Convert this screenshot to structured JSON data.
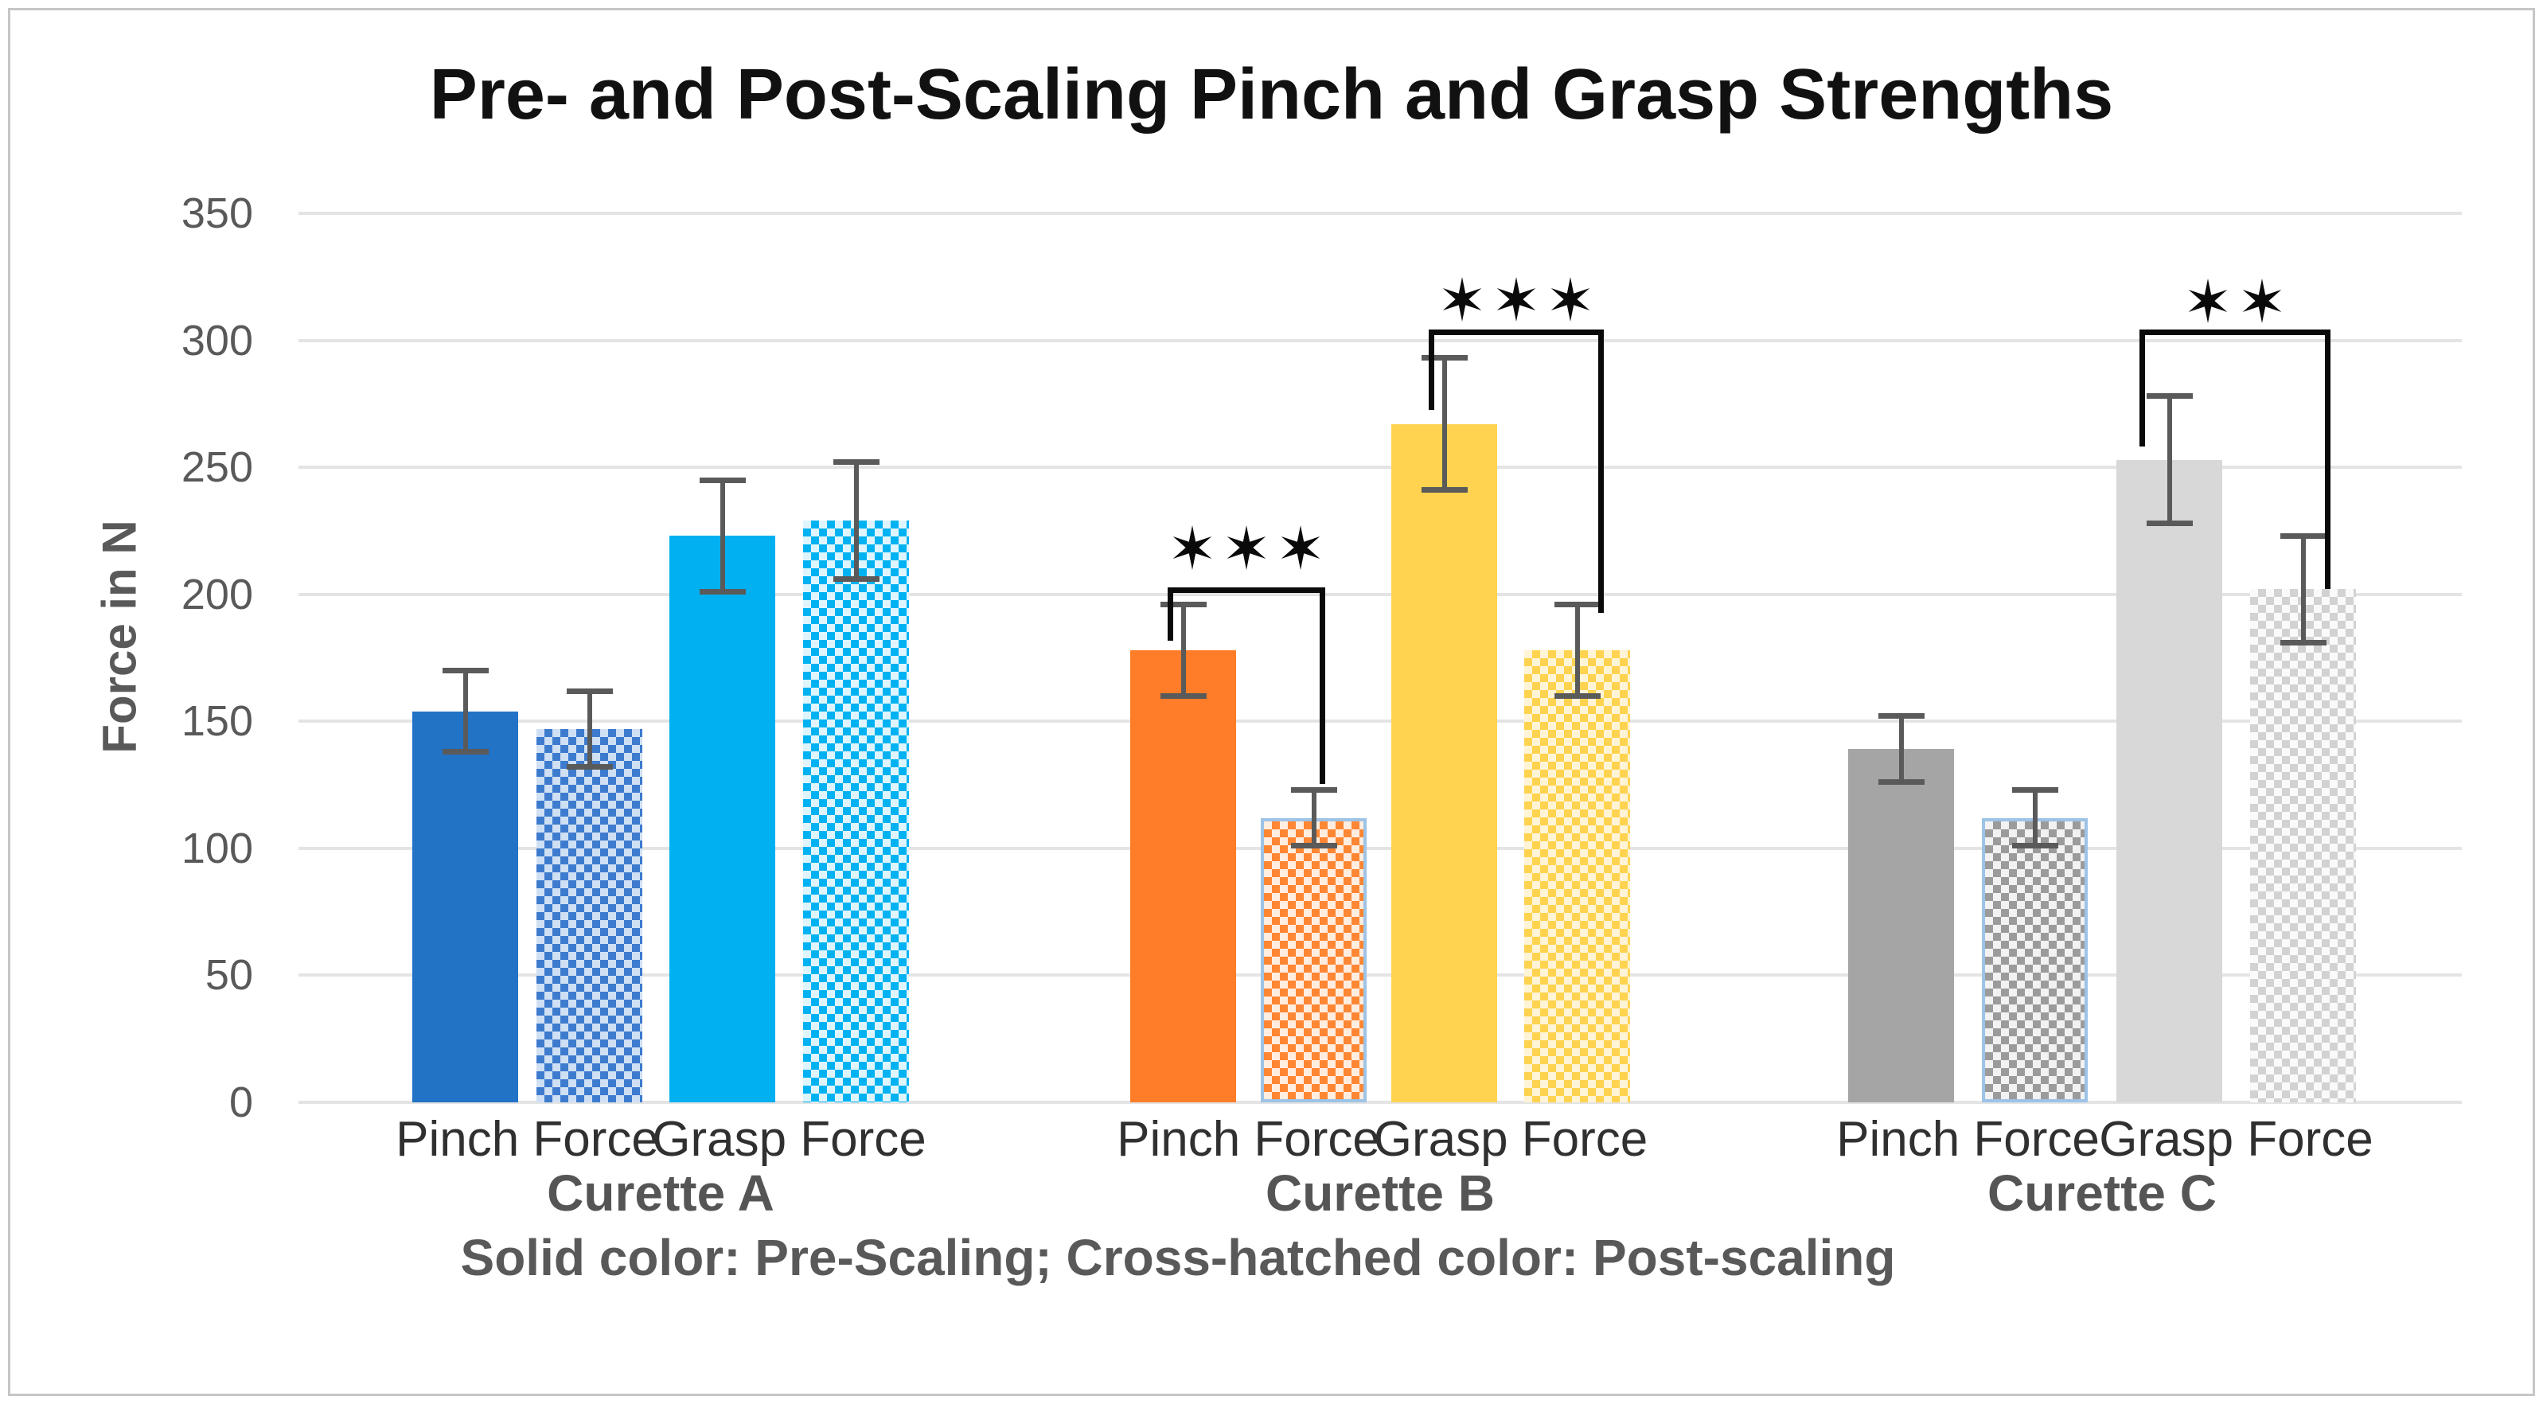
{
  "chart_data": {
    "type": "bar",
    "title": "Pre- and Post-Scaling Pinch and Grasp Strengths",
    "ylabel": "Force in N",
    "xlabel": "",
    "ylim": [
      0,
      350
    ],
    "yticks": [
      0,
      50,
      100,
      150,
      200,
      250,
      300,
      350
    ],
    "grid": true,
    "legend_note": "Solid color: Pre-Scaling; Cross-hatched color: Post-scaling",
    "legend": {
      "solid": "Pre-Scaling",
      "cross_hatched": "Post-scaling"
    },
    "error_bar_color": "#5a5a5a",
    "groups": [
      {
        "label": "Curette A",
        "categories": [
          "Pinch Force",
          "Grasp Force"
        ],
        "bars": [
          {
            "category": "Pinch Force",
            "phase": "Pre-Scaling",
            "style": "solid",
            "value": 154,
            "error": 16,
            "color": "#2272c6"
          },
          {
            "category": "Pinch Force",
            "phase": "Post-scaling",
            "style": "cross-hatched",
            "value": 147,
            "error": 15,
            "color": "#3d7bce",
            "bg": "#cfe0f4"
          },
          {
            "category": "Grasp Force",
            "phase": "Pre-Scaling",
            "style": "solid",
            "value": 223,
            "error": 22,
            "color": "#00b0f0"
          },
          {
            "category": "Grasp Force",
            "phase": "Post-scaling",
            "style": "cross-hatched",
            "value": 229,
            "error": 23,
            "color": "#00b2f2",
            "bg": "#dff5fd"
          }
        ]
      },
      {
        "label": "Curette B",
        "categories": [
          "Pinch Force",
          "Grasp Force"
        ],
        "bars": [
          {
            "category": "Pinch Force",
            "phase": "Pre-Scaling",
            "style": "solid",
            "value": 178,
            "error": 18,
            "color": "#ff7d28"
          },
          {
            "category": "Pinch Force",
            "phase": "Post-scaling",
            "style": "cross-hatched",
            "value": 112,
            "error": 11,
            "color": "#ff8633",
            "bg": "#ffede0",
            "border": "#9dc3e6"
          },
          {
            "category": "Grasp Force",
            "phase": "Pre-Scaling",
            "style": "solid",
            "value": 267,
            "error": 26,
            "color": "#ffd34f"
          },
          {
            "category": "Grasp Force",
            "phase": "Post-scaling",
            "style": "cross-hatched",
            "value": 178,
            "error": 18,
            "color": "#ffd34f",
            "bg": "#fff4d6"
          }
        ]
      },
      {
        "label": "Curette C",
        "categories": [
          "Pinch Force",
          "Grasp Force"
        ],
        "bars": [
          {
            "category": "Pinch Force",
            "phase": "Pre-Scaling",
            "style": "solid",
            "value": 139,
            "error": 13,
            "color": "#a5a5a5"
          },
          {
            "category": "Pinch Force",
            "phase": "Post-scaling",
            "style": "cross-hatched",
            "value": 112,
            "error": 11,
            "color": "#9b9b9b",
            "bg": "#f2f2f2",
            "border": "#9dc3e6"
          },
          {
            "category": "Grasp Force",
            "phase": "Pre-Scaling",
            "style": "solid",
            "value": 253,
            "error": 25,
            "color": "#d8d8d8"
          },
          {
            "category": "Grasp Force",
            "phase": "Post-scaling",
            "style": "cross-hatched",
            "value": 202,
            "error": 21,
            "color": "#d2d2d2",
            "bg": "#fafafa"
          }
        ]
      }
    ],
    "significance": [
      {
        "group": "Curette B",
        "category": "Pinch Force",
        "label": "***",
        "compares": [
          "Pre-Scaling",
          "Post-scaling"
        ]
      },
      {
        "group": "Curette B",
        "category": "Grasp Force",
        "label": "***",
        "compares": [
          "Pre-Scaling",
          "Post-scaling"
        ]
      },
      {
        "group": "Curette C",
        "category": "Grasp Force",
        "label": "**",
        "compares": [
          "Pre-Scaling",
          "Post-scaling"
        ]
      }
    ]
  }
}
